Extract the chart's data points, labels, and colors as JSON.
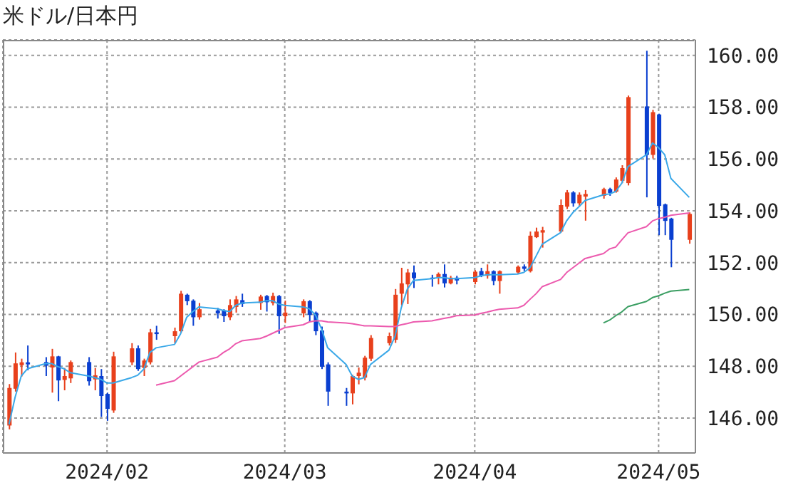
{
  "chart_data": {
    "type": "candlestick",
    "title": "米ドル/日本円",
    "x": [
      "2024-01-16",
      "2024-01-17",
      "2024-01-18",
      "2024-01-19",
      "2024-01-22",
      "2024-01-23",
      "2024-01-24",
      "2024-01-25",
      "2024-01-26",
      "2024-01-29",
      "2024-01-30",
      "2024-01-31",
      "2024-02-01",
      "2024-02-02",
      "2024-02-05",
      "2024-02-06",
      "2024-02-07",
      "2024-02-08",
      "2024-02-09",
      "2024-02-12",
      "2024-02-13",
      "2024-02-14",
      "2024-02-15",
      "2024-02-16",
      "2024-02-19",
      "2024-02-20",
      "2024-02-21",
      "2024-02-22",
      "2024-02-23",
      "2024-02-26",
      "2024-02-27",
      "2024-02-28",
      "2024-02-29",
      "2024-03-01",
      "2024-03-04",
      "2024-03-05",
      "2024-03-06",
      "2024-03-07",
      "2024-03-08",
      "2024-03-11",
      "2024-03-12",
      "2024-03-13",
      "2024-03-14",
      "2024-03-15",
      "2024-03-18",
      "2024-03-19",
      "2024-03-20",
      "2024-03-21",
      "2024-03-22",
      "2024-03-25",
      "2024-03-26",
      "2024-03-27",
      "2024-03-28",
      "2024-03-29",
      "2024-04-01",
      "2024-04-02",
      "2024-04-03",
      "2024-04-04",
      "2024-04-05",
      "2024-04-08",
      "2024-04-09",
      "2024-04-10",
      "2024-04-11",
      "2024-04-12",
      "2024-04-15",
      "2024-04-16",
      "2024-04-17",
      "2024-04-18",
      "2024-04-19",
      "2024-04-22",
      "2024-04-23",
      "2024-04-24",
      "2024-04-25",
      "2024-04-26",
      "2024-04-29",
      "2024-04-30",
      "2024-05-01",
      "2024-05-02",
      "2024-05-03",
      "2024-05-06"
    ],
    "ohlc": [
      [
        145.71,
        147.31,
        145.56,
        147.16
      ],
      [
        147.13,
        148.53,
        147.02,
        148.11
      ],
      [
        148.04,
        148.29,
        147.6,
        148.15
      ],
      [
        148.15,
        148.8,
        147.84,
        148.07
      ],
      [
        148.16,
        148.35,
        147.62,
        148.02
      ],
      [
        147.95,
        148.67,
        146.98,
        148.38
      ],
      [
        148.38,
        148.4,
        146.65,
        147.45
      ],
      [
        147.47,
        147.93,
        147.07,
        147.62
      ],
      [
        147.53,
        148.22,
        147.35,
        148.16
      ],
      [
        148.16,
        148.35,
        147.25,
        147.42
      ],
      [
        147.49,
        147.93,
        147.07,
        147.65
      ],
      [
        147.62,
        147.89,
        146.04,
        146.85
      ],
      [
        146.93,
        146.98,
        145.89,
        146.35
      ],
      [
        146.29,
        148.56,
        146.2,
        148.38
      ],
      [
        148.15,
        148.89,
        148.04,
        148.69
      ],
      [
        148.69,
        148.8,
        147.82,
        147.89
      ],
      [
        147.93,
        148.29,
        147.62,
        148.22
      ],
      [
        148.15,
        149.44,
        148.07,
        149.31
      ],
      [
        149.31,
        149.56,
        149.02,
        149.24
      ],
      [
        149.16,
        149.49,
        148.89,
        149.35
      ],
      [
        149.35,
        150.91,
        149.29,
        150.8
      ],
      [
        150.76,
        150.8,
        150.36,
        150.51
      ],
      [
        150.53,
        150.58,
        149.56,
        149.89
      ],
      [
        149.89,
        150.44,
        149.8,
        150.2
      ],
      [
        150.15,
        150.25,
        149.84,
        150.04
      ],
      [
        150.16,
        150.2,
        149.71,
        149.93
      ],
      [
        149.89,
        150.58,
        149.78,
        150.36
      ],
      [
        150.29,
        150.71,
        150.07,
        150.58
      ],
      [
        150.55,
        150.8,
        150.29,
        150.4
      ],
      [
        150.44,
        150.76,
        150.18,
        150.69
      ],
      [
        150.71,
        150.75,
        150.11,
        150.47
      ],
      [
        150.44,
        150.84,
        150.35,
        150.71
      ],
      [
        150.71,
        150.75,
        149.25,
        149.93
      ],
      [
        149.93,
        150.53,
        149.67,
        150.07
      ],
      [
        150.04,
        150.58,
        149.89,
        150.51
      ],
      [
        150.51,
        150.55,
        149.71,
        149.98
      ],
      [
        150.07,
        150.11,
        149.2,
        149.35
      ],
      [
        149.38,
        149.53,
        147.89,
        147.98
      ],
      [
        148.07,
        148.15,
        146.47,
        147.02
      ],
      [
        147.02,
        147.16,
        146.47,
        146.95
      ],
      [
        146.95,
        147.67,
        146.53,
        147.62
      ],
      [
        147.62,
        147.95,
        147.3,
        147.75
      ],
      [
        147.56,
        148.4,
        147.45,
        148.33
      ],
      [
        148.29,
        149.2,
        148.2,
        149.09
      ],
      [
        148.89,
        149.3,
        148.8,
        149.16
      ],
      [
        149.02,
        150.98,
        148.9,
        150.76
      ],
      [
        150.8,
        151.8,
        150.35,
        151.2
      ],
      [
        151.16,
        151.75,
        150.4,
        151.62
      ],
      [
        151.62,
        151.89,
        151.02,
        151.4
      ],
      [
        151.42,
        151.53,
        151.07,
        151.36
      ],
      [
        151.42,
        151.62,
        151.16,
        151.56
      ],
      [
        151.56,
        151.93,
        151.04,
        151.2
      ],
      [
        151.2,
        151.49,
        151.16,
        151.42
      ],
      [
        151.42,
        151.49,
        151.16,
        151.31
      ],
      [
        151.25,
        151.71,
        151.16,
        151.65
      ],
      [
        151.67,
        151.8,
        151.44,
        151.49
      ],
      [
        151.49,
        151.93,
        151.38,
        151.67
      ],
      [
        151.67,
        151.7,
        151.13,
        151.29
      ],
      [
        151.29,
        151.7,
        150.8,
        151.67
      ],
      [
        151.62,
        151.89,
        151.56,
        151.84
      ],
      [
        151.85,
        151.93,
        151.67,
        151.76
      ],
      [
        151.67,
        153.2,
        151.62,
        153.04
      ],
      [
        152.98,
        153.35,
        152.95,
        153.2
      ],
      [
        153.16,
        153.38,
        152.58,
        153.25
      ],
      [
        153.2,
        154.44,
        153.16,
        154.22
      ],
      [
        154.16,
        154.8,
        154.07,
        154.71
      ],
      [
        154.71,
        154.76,
        154.16,
        154.29
      ],
      [
        154.29,
        154.71,
        154.16,
        154.62
      ],
      [
        154.55,
        154.8,
        153.62,
        154.65
      ],
      [
        154.58,
        154.89,
        154.47,
        154.84
      ],
      [
        154.84,
        154.89,
        154.58,
        154.69
      ],
      [
        154.74,
        155.29,
        154.7,
        155.21
      ],
      [
        155.16,
        155.76,
        155.07,
        155.65
      ],
      [
        155.07,
        158.45,
        154.98,
        158.39
      ],
      [
        158.03,
        160.18,
        154.52,
        156.16
      ],
      [
        156.16,
        157.9,
        156.02,
        157.81
      ],
      [
        157.72,
        157.75,
        153.06,
        154.19
      ],
      [
        154.25,
        154.28,
        153.06,
        153.61
      ],
      [
        153.7,
        153.73,
        151.82,
        152.88
      ],
      [
        152.88,
        153.94,
        152.73,
        153.88
      ]
    ],
    "colors": [
      "#e8401c",
      "#e8401c",
      "#e8401c",
      "#0a3fd0",
      "#0a3fd0",
      "#e8401c",
      "#0a3fd0",
      "#e8401c",
      "#e8401c",
      "#0a3fd0",
      "#e8401c",
      "#0a3fd0",
      "#0a3fd0",
      "#e8401c",
      "#e8401c",
      "#0a3fd0",
      "#e8401c",
      "#e8401c",
      "#0a3fd0",
      "#e8401c",
      "#e8401c",
      "#0a3fd0",
      "#0a3fd0",
      "#e8401c",
      "#0a3fd0",
      "#0a3fd0",
      "#e8401c",
      "#e8401c",
      "#0a3fd0",
      "#e8401c",
      "#0a3fd0",
      "#e8401c",
      "#0a3fd0",
      "#e8401c",
      "#e8401c",
      "#0a3fd0",
      "#0a3fd0",
      "#0a3fd0",
      "#0a3fd0",
      "#0a3fd0",
      "#e8401c",
      "#e8401c",
      "#e8401c",
      "#e8401c",
      "#e8401c",
      "#e8401c",
      "#e8401c",
      "#e8401c",
      "#0a3fd0",
      "#0a3fd0",
      "#e8401c",
      "#0a3fd0",
      "#e8401c",
      "#0a3fd0",
      "#e8401c",
      "#0a3fd0",
      "#e8401c",
      "#0a3fd0",
      "#e8401c",
      "#e8401c",
      "#0a3fd0",
      "#e8401c",
      "#e8401c",
      "#e8401c",
      "#e8401c",
      "#e8401c",
      "#0a3fd0",
      "#e8401c",
      "#e8401c",
      "#e8401c",
      "#0a3fd0",
      "#e8401c",
      "#e8401c",
      "#e8401c",
      "#0a3fd0",
      "#e8401c",
      "#0a3fd0",
      "#0a3fd0",
      "#0a3fd0",
      "#e8401c"
    ],
    "series": [
      {
        "type": "line",
        "color": "#3aa8e8",
        "values": [
          145.75,
          146.8,
          147.62,
          147.9,
          148.1,
          148.1,
          147.98,
          147.9,
          147.75,
          147.62,
          147.56,
          147.49,
          147.35,
          147.35,
          147.56,
          147.65,
          147.89,
          148.53,
          148.71,
          148.84,
          149.25,
          149.89,
          150.11,
          150.29,
          150.22,
          150.15,
          150.11,
          150.35,
          150.44,
          150.47,
          150.53,
          150.53,
          150.4,
          150.35,
          150.29,
          150.22,
          149.98,
          149.44,
          148.71,
          148.07,
          147.62,
          147.49,
          147.56,
          148.07,
          148.62,
          149.16,
          150.25,
          150.98,
          151.31,
          151.38,
          151.42,
          151.42,
          151.38,
          151.38,
          151.42,
          151.49,
          151.53,
          151.53,
          151.53,
          151.56,
          151.62,
          151.8,
          152.25,
          152.71,
          153.16,
          153.62,
          153.93,
          154.16,
          154.4,
          154.62,
          154.65,
          154.75,
          155.07,
          155.71,
          156.16,
          156.62,
          156.44,
          156.16,
          155.25,
          154.52
        ]
      },
      {
        "type": "line",
        "color": "#ec5aae",
        "values": [
          null,
          null,
          null,
          null,
          null,
          null,
          null,
          null,
          null,
          null,
          null,
          null,
          null,
          null,
          null,
          null,
          null,
          null,
          147.27,
          147.44,
          147.62,
          147.8,
          147.98,
          148.16,
          148.35,
          148.53,
          148.67,
          148.87,
          148.98,
          149.07,
          149.16,
          149.27,
          149.38,
          149.49,
          149.6,
          149.71,
          149.75,
          149.75,
          149.71,
          149.67,
          149.64,
          149.6,
          149.56,
          149.56,
          149.53,
          149.53,
          149.6,
          149.65,
          149.71,
          149.75,
          149.8,
          149.85,
          149.89,
          149.95,
          149.98,
          150.04,
          150.09,
          150.15,
          150.2,
          150.25,
          150.35,
          150.58,
          150.8,
          151.07,
          151.35,
          151.62,
          151.8,
          151.98,
          152.16,
          152.35,
          152.53,
          152.6,
          152.88,
          153.15,
          153.39,
          153.61,
          153.7,
          153.75,
          153.83,
          153.92
        ]
      },
      {
        "type": "line",
        "color": "#3a9e62",
        "values": [
          null,
          null,
          null,
          null,
          null,
          null,
          null,
          null,
          null,
          null,
          null,
          null,
          null,
          null,
          null,
          null,
          null,
          null,
          null,
          null,
          null,
          null,
          null,
          null,
          null,
          null,
          null,
          null,
          null,
          null,
          null,
          null,
          null,
          null,
          null,
          null,
          null,
          null,
          null,
          null,
          null,
          null,
          null,
          null,
          null,
          null,
          null,
          null,
          null,
          null,
          null,
          null,
          null,
          null,
          null,
          null,
          null,
          null,
          null,
          null,
          null,
          null,
          null,
          null,
          null,
          null,
          null,
          null,
          null,
          149.67,
          149.78,
          149.95,
          150.1,
          150.3,
          150.5,
          150.65,
          150.72,
          150.82,
          150.9,
          150.96
        ]
      }
    ],
    "xlim": [
      "2024-01-15",
      "2024-05-07"
    ],
    "ylim": [
      144.65,
      160.6
    ],
    "yticks": [
      {
        "value": 146,
        "label": "146.00"
      },
      {
        "value": 148,
        "label": "148.00"
      },
      {
        "value": 150,
        "label": "150.00"
      },
      {
        "value": 152,
        "label": "152.00"
      },
      {
        "value": 154,
        "label": "154.00"
      },
      {
        "value": 156,
        "label": "156.00"
      },
      {
        "value": 158,
        "label": "158.00"
      },
      {
        "value": 160,
        "label": "160.00"
      }
    ],
    "xticks": [
      {
        "value": "2024-02-01",
        "label": "2024/02"
      },
      {
        "value": "2024-03-01",
        "label": "2024/03"
      },
      {
        "value": "2024-04-01",
        "label": "2024/04"
      },
      {
        "value": "2024-05-01",
        "label": "2024/05"
      }
    ],
    "grid": true,
    "marker": "none",
    "line_style": "solid"
  }
}
